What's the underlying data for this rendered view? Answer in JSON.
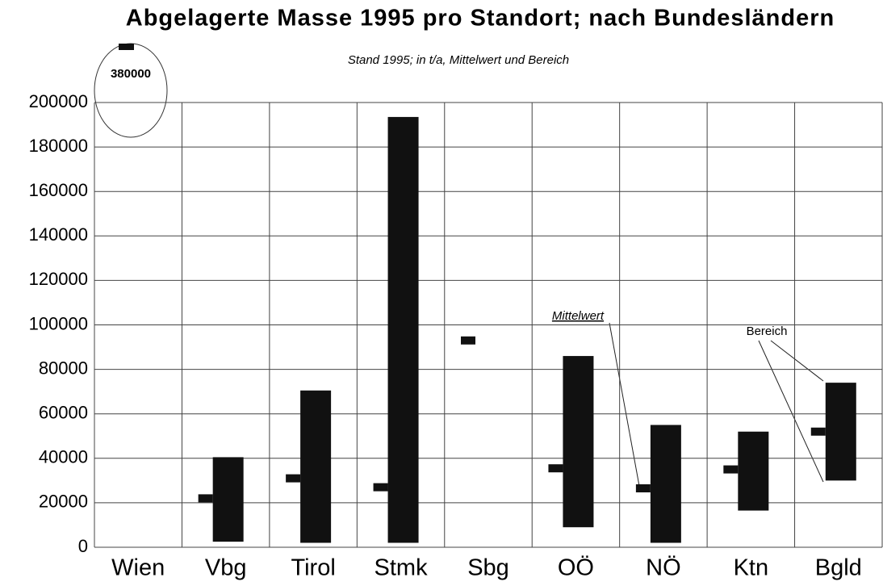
{
  "chart_data": {
    "type": "range",
    "title": "Abgelagerte Masse 1995 pro Standort; nach Bundesländern",
    "subtitle": "Stand 1995; in t/a, Mittelwert und Bereich",
    "categories": [
      "Wien",
      "Vbg",
      "Tirol",
      "Stmk",
      "Sbg",
      "OÖ",
      "NÖ",
      "Ktn",
      "Bgld"
    ],
    "series": [
      {
        "name": "Mittelwert",
        "color": "#111111",
        "values": [
          380000,
          22000,
          31000,
          27000,
          93000,
          35500,
          26500,
          35000,
          52000
        ]
      },
      {
        "name": "Bereich",
        "color": "#111111",
        "low": [
          null,
          2500,
          2000,
          2000,
          null,
          9000,
          2000,
          16500,
          30000
        ],
        "high": [
          null,
          40500,
          70500,
          193500,
          null,
          86000,
          55000,
          52000,
          74000
        ]
      }
    ],
    "ylim": [
      0,
      200000
    ],
    "yticks": [
      0,
      20000,
      40000,
      60000,
      80000,
      100000,
      120000,
      140000,
      160000,
      180000,
      200000
    ],
    "grid": true
  }
}
